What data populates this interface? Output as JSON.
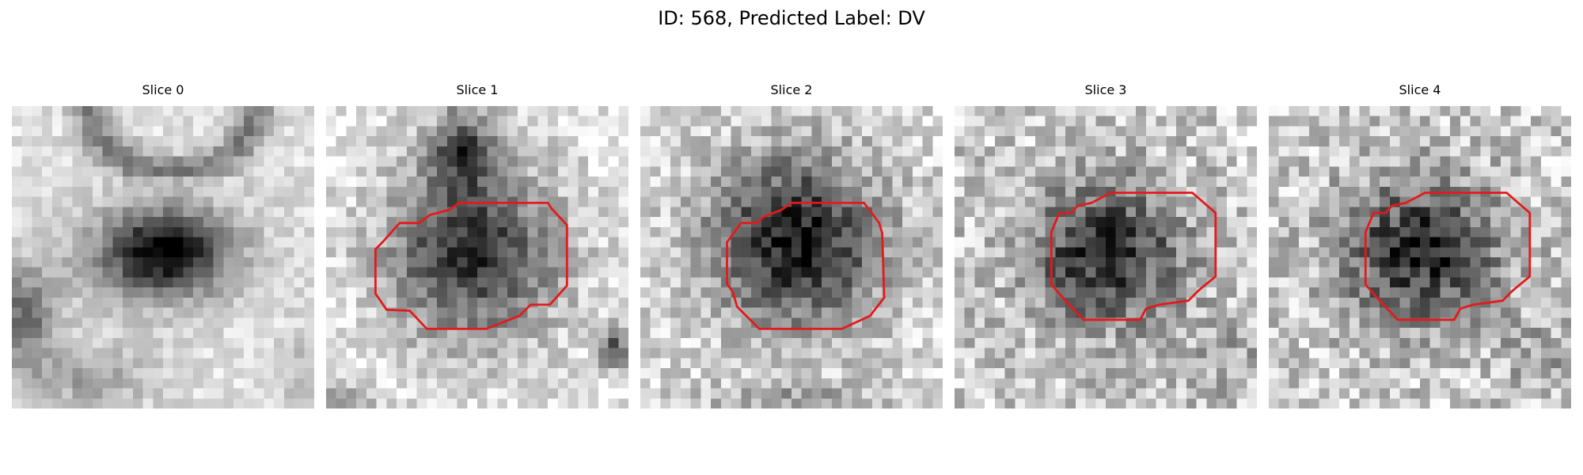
{
  "figure": {
    "title": "ID: 568, Predicted Label: DV"
  },
  "panels": [
    {
      "title": "Slice 0"
    },
    {
      "title": "Slice 1"
    },
    {
      "title": "Slice 2"
    },
    {
      "title": "Slice 3"
    },
    {
      "title": "Slice 4"
    }
  ],
  "colors": {
    "contour": "#e31a1c",
    "background": "#ffffff"
  }
}
